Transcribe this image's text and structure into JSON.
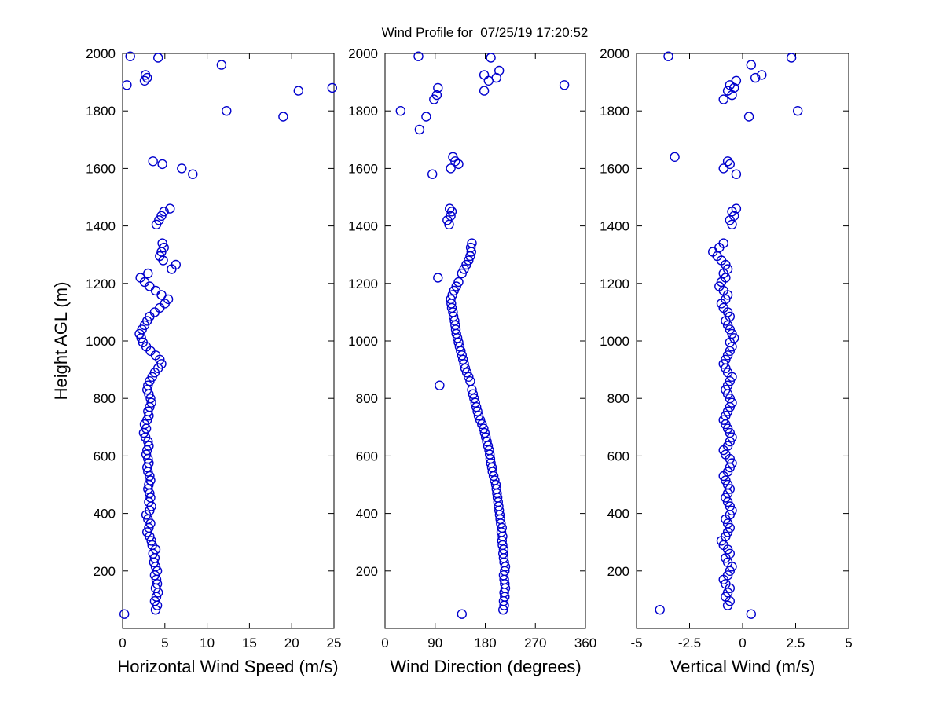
{
  "figure": {
    "background": "#ffffff"
  },
  "chart_data": {
    "type": "scatter",
    "title": "Wind Profile for  07/25/19 17:20:52",
    "ylabel": "Height AGL (m)",
    "ylim": [
      0,
      2000
    ],
    "yticks": [
      200,
      400,
      600,
      800,
      1000,
      1200,
      1400,
      1600,
      1800,
      2000
    ],
    "marker": {
      "shape": "circle-open",
      "color": "#0000cd"
    },
    "grid": false,
    "legend": "none",
    "heights": [
      50,
      65,
      80,
      95,
      110,
      125,
      140,
      155,
      170,
      185,
      200,
      215,
      230,
      245,
      260,
      275,
      290,
      305,
      320,
      335,
      350,
      365,
      380,
      395,
      410,
      425,
      440,
      455,
      470,
      485,
      500,
      515,
      530,
      545,
      560,
      575,
      590,
      605,
      620,
      635,
      650,
      665,
      680,
      695,
      710,
      725,
      740,
      755,
      770,
      785,
      800,
      815,
      830,
      845,
      860,
      875,
      890,
      905,
      920,
      935,
      950,
      965,
      980,
      995,
      1010,
      1025,
      1040,
      1055,
      1070,
      1085,
      1100,
      1115,
      1130,
      1145,
      1160,
      1175,
      1190,
      1205,
      1220,
      1235,
      1250,
      1265,
      1280,
      1295,
      1310,
      1325,
      1340,
      1405,
      1420,
      1435,
      1450,
      1460,
      1580,
      1600,
      1615,
      1625,
      1640,
      1735,
      1780,
      1800,
      1840,
      1855,
      1870,
      1880,
      1890,
      1905,
      1915,
      1925,
      1940,
      1960,
      1985,
      1990
    ],
    "panels": [
      {
        "name": "horizontal-wind-speed",
        "xlabel": "Horizontal Wind Speed (m/s)",
        "xlim": [
          0,
          25
        ],
        "xticks": [
          0,
          5,
          10,
          15,
          20,
          25
        ],
        "values": [
          0.2,
          3.9,
          4.1,
          3.8,
          4.0,
          4.2,
          3.9,
          4.1,
          4.0,
          3.8,
          4.1,
          3.9,
          3.7,
          3.8,
          3.6,
          3.9,
          3.5,
          3.4,
          3.2,
          2.9,
          3.1,
          3.3,
          3.0,
          2.8,
          3.2,
          3.4,
          3.1,
          3.3,
          3.2,
          3.0,
          3.1,
          3.3,
          3.2,
          3.0,
          2.9,
          3.1,
          3.0,
          2.8,
          2.9,
          3.1,
          3.0,
          2.7,
          2.5,
          2.8,
          2.6,
          2.9,
          3.1,
          3.0,
          3.2,
          3.4,
          3.3,
          3.1,
          2.9,
          3.0,
          3.2,
          3.5,
          3.8,
          4.2,
          4.6,
          4.4,
          3.9,
          3.3,
          2.8,
          2.4,
          2.2,
          2.0,
          2.3,
          2.6,
          2.9,
          3.2,
          3.8,
          4.4,
          5.0,
          5.4,
          4.6,
          3.9,
          3.2,
          2.6,
          2.1,
          3.0,
          5.8,
          6.3,
          4.8,
          4.4,
          4.6,
          4.9,
          4.7,
          4.0,
          4.3,
          4.6,
          4.9,
          5.6,
          8.3,
          7.0,
          4.7,
          3.6,
          null,
          null,
          19.0,
          12.3,
          null,
          null,
          20.8,
          24.8,
          0.5,
          2.6,
          2.9,
          2.7,
          null,
          11.7,
          4.2,
          0.9
        ]
      },
      {
        "name": "wind-direction",
        "xlabel": "Wind Direction (degrees)",
        "xlim": [
          0,
          360
        ],
        "xticks": [
          0,
          90,
          180,
          270,
          360
        ],
        "values": [
          138,
          212,
          214,
          213,
          215,
          214,
          216,
          215,
          214,
          213,
          215,
          216,
          214,
          213,
          212,
          213,
          211,
          210,
          211,
          209,
          210,
          208,
          207,
          206,
          205,
          204,
          203,
          202,
          201,
          200,
          199,
          197,
          195,
          193,
          192,
          190,
          189,
          188,
          187,
          185,
          183,
          181,
          179,
          177,
          174,
          171,
          168,
          166,
          164,
          162,
          160,
          158,
          156,
          98,
          153,
          150,
          147,
          144,
          142,
          140,
          138,
          136,
          134,
          132,
          130,
          128,
          127,
          126,
          125,
          123,
          122,
          120,
          119,
          118,
          121,
          124,
          128,
          132,
          95,
          138,
          142,
          146,
          150,
          153,
          155,
          154,
          156,
          115,
          112,
          118,
          120,
          116,
          85,
          118,
          132,
          126,
          122,
          62,
          74,
          28,
          88,
          93,
          178,
          95,
          322,
          186,
          200,
          178,
          205,
          null,
          190,
          60
        ]
      },
      {
        "name": "vertical-wind",
        "xlabel": "Vertical Wind (m/s)",
        "xlim": [
          -5,
          5
        ],
        "xticks": [
          -5,
          -2.5,
          0,
          2.5,
          5
        ],
        "values": [
          0.4,
          -3.9,
          -0.7,
          -0.6,
          -0.8,
          -0.7,
          -0.6,
          -0.8,
          -0.9,
          -0.7,
          -0.6,
          -0.5,
          -0.7,
          -0.8,
          -0.6,
          -0.7,
          -0.9,
          -1.0,
          -0.8,
          -0.7,
          -0.6,
          -0.7,
          -0.8,
          -0.6,
          -0.5,
          -0.6,
          -0.7,
          -0.8,
          -0.7,
          -0.6,
          -0.7,
          -0.8,
          -0.9,
          -0.7,
          -0.6,
          -0.5,
          -0.6,
          -0.8,
          -0.9,
          -0.7,
          -0.6,
          -0.5,
          -0.6,
          -0.7,
          -0.8,
          -0.9,
          -0.8,
          -0.7,
          -0.6,
          -0.5,
          -0.6,
          -0.7,
          -0.8,
          -0.7,
          -0.6,
          -0.5,
          -0.7,
          -0.8,
          -0.9,
          -0.8,
          -0.7,
          -0.6,
          -0.5,
          -0.6,
          -0.4,
          -0.5,
          -0.6,
          -0.7,
          -0.8,
          -0.6,
          -0.7,
          -0.9,
          -1.0,
          -0.8,
          -0.7,
          -0.9,
          -1.1,
          -1.0,
          -0.8,
          -0.9,
          -0.7,
          -0.8,
          -1.0,
          -1.2,
          -1.4,
          -1.1,
          -0.9,
          -0.5,
          -0.6,
          -0.4,
          -0.5,
          -0.3,
          -0.3,
          -0.9,
          -0.6,
          -0.7,
          -3.2,
          null,
          0.3,
          2.6,
          -0.9,
          -0.5,
          -0.7,
          -0.4,
          -0.6,
          -0.3,
          0.6,
          0.9,
          null,
          0.4,
          2.3,
          -3.5
        ]
      }
    ]
  }
}
